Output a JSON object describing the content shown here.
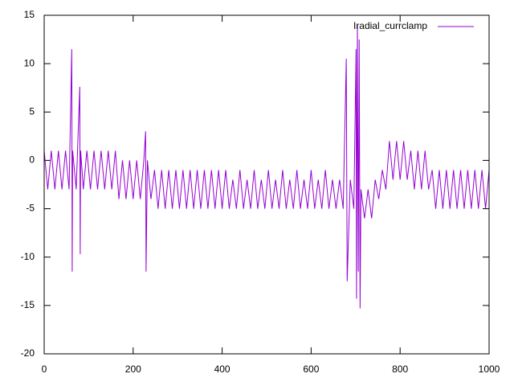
{
  "chart_data": {
    "type": "line",
    "x": [
      0,
      8,
      16,
      24,
      32,
      40,
      48,
      56,
      62,
      63,
      64,
      72,
      80,
      81,
      82,
      88,
      96,
      104,
      112,
      120,
      128,
      136,
      144,
      152,
      160,
      168,
      176,
      184,
      192,
      200,
      208,
      216,
      224,
      228,
      229,
      232,
      240,
      248,
      256,
      264,
      272,
      280,
      288,
      296,
      304,
      312,
      320,
      328,
      336,
      344,
      352,
      360,
      368,
      376,
      384,
      392,
      400,
      408,
      416,
      424,
      432,
      440,
      448,
      456,
      464,
      472,
      480,
      488,
      496,
      504,
      512,
      520,
      528,
      536,
      544,
      552,
      560,
      568,
      576,
      584,
      592,
      600,
      608,
      616,
      624,
      632,
      640,
      648,
      656,
      664,
      672,
      679,
      681,
      688,
      696,
      701,
      702,
      704,
      706,
      708,
      710,
      712,
      720,
      728,
      736,
      744,
      752,
      760,
      768,
      776,
      784,
      792,
      800,
      808,
      816,
      824,
      832,
      840,
      848,
      856,
      864,
      872,
      880,
      888,
      896,
      904,
      912,
      920,
      928,
      936,
      944,
      952,
      960,
      968,
      976,
      984,
      992,
      1000
    ],
    "series": [
      {
        "name": "Iradial_currclamp",
        "color": "#9400d3",
        "values": [
          1,
          -3,
          1,
          -3,
          1,
          -3,
          1,
          -3,
          11.5,
          -11.5,
          1,
          -3,
          7.6,
          -9.7,
          1,
          -3,
          1,
          -3,
          1,
          -3,
          1,
          -3,
          1,
          -3,
          1,
          -4,
          0,
          -4,
          0,
          -4,
          0,
          -4,
          0,
          3,
          -11.5,
          0,
          -4,
          -1,
          -5,
          -1,
          -5,
          -1,
          -5,
          -1,
          -5,
          -1,
          -5,
          -1,
          -5,
          -1,
          -5,
          -1,
          -5,
          -1,
          -5,
          -1,
          -5,
          -1,
          -5,
          -2,
          -5,
          -1,
          -5,
          -2,
          -5,
          -1,
          -5,
          -2,
          -5,
          -1,
          -5,
          -2,
          -5,
          -1,
          -5,
          -2,
          -5,
          -1,
          -5,
          -2,
          -5,
          -1,
          -5,
          -2,
          -5,
          -1,
          -5,
          -2,
          -5,
          -2,
          -5,
          10.5,
          -12.5,
          -2,
          -5,
          11.5,
          -14.3,
          14,
          -11.5,
          12.5,
          -15.3,
          -3,
          -6,
          -3,
          -6,
          -2,
          -4,
          -1,
          -3,
          2,
          -2,
          2,
          -2,
          2,
          -2,
          1,
          -3,
          1,
          -3,
          1,
          -3,
          -1,
          -5,
          -1,
          -5,
          -1,
          -5,
          -1,
          -5,
          -1,
          -5,
          -1,
          -5,
          -1,
          -5,
          -1,
          -5,
          -1
        ]
      }
    ],
    "xlim": [
      0,
      1000
    ],
    "xticks": [
      0,
      200,
      400,
      600,
      800,
      1000
    ],
    "ylim": [
      -20,
      15
    ],
    "yticks": [
      -20,
      -15,
      -10,
      -5,
      0,
      5,
      10,
      15
    ],
    "legend": "upper right"
  }
}
